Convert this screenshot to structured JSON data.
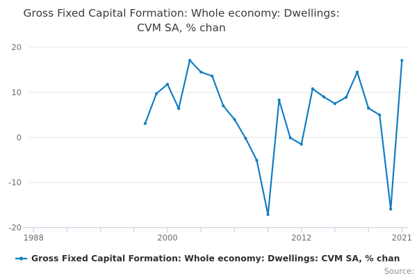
{
  "title": {
    "full": "Gross Fixed Capital Formation: Whole economy: Dwellings: CVM SA, % chan",
    "lines": [
      "Gross Fixed Capital Formation: Whole economy: Dwellings:",
      "CVM SA, % chan"
    ]
  },
  "legend": {
    "label": "Gross Fixed Capital Formation: Whole economy: Dwellings: CVM SA, % chan",
    "symbol": "line-with-dot-marker"
  },
  "source_label": "Source:",
  "colors": {
    "line": "#107dc3",
    "marker": "#107dc3",
    "gridline": "#e4e4e4",
    "axis": "#c8d3df",
    "tick_label": "#6b6b6b",
    "title_text": "#3b3b3b",
    "legend_text": "#303030",
    "source_text": "#8f8f8f",
    "background": "#ffffff"
  },
  "chart_data": {
    "type": "line",
    "title": "Gross Fixed Capital Formation: Whole economy: Dwellings: CVM SA, % chan",
    "xlabel": "",
    "ylabel": "",
    "x": [
      1998,
      1999,
      2000,
      2001,
      2002,
      2003,
      2004,
      2005,
      2006,
      2007,
      2008,
      2009,
      2010,
      2011,
      2012,
      2013,
      2014,
      2015,
      2016,
      2017,
      2018,
      2019,
      2020,
      2021
    ],
    "values": [
      3.1,
      9.7,
      11.8,
      6.4,
      17.1,
      14.5,
      13.6,
      7.0,
      4.0,
      -0.2,
      -5.1,
      -17.1,
      8.3,
      -0.1,
      -1.5,
      10.8,
      9.0,
      7.5,
      8.9,
      14.5,
      6.5,
      5.0,
      -15.9,
      17.1
    ],
    "series_name": "Gross Fixed Capital Formation: Whole economy: Dwellings: CVM SA, % chan",
    "xlim": [
      1988,
      2021
    ],
    "ylim": [
      -20,
      20
    ],
    "y_tick_labels": [
      "20",
      "10",
      "0",
      "-10",
      "-20"
    ],
    "x_tick_labels": [
      "1988",
      "2000",
      "2012",
      "2021"
    ],
    "x_minor_tick_years": [
      1988,
      1991,
      1994,
      1997,
      2000,
      2003,
      2006,
      2009,
      2012,
      2015,
      2018,
      2021
    ],
    "grid": "horizontal",
    "legend_position": "bottom-left",
    "markers": true
  }
}
